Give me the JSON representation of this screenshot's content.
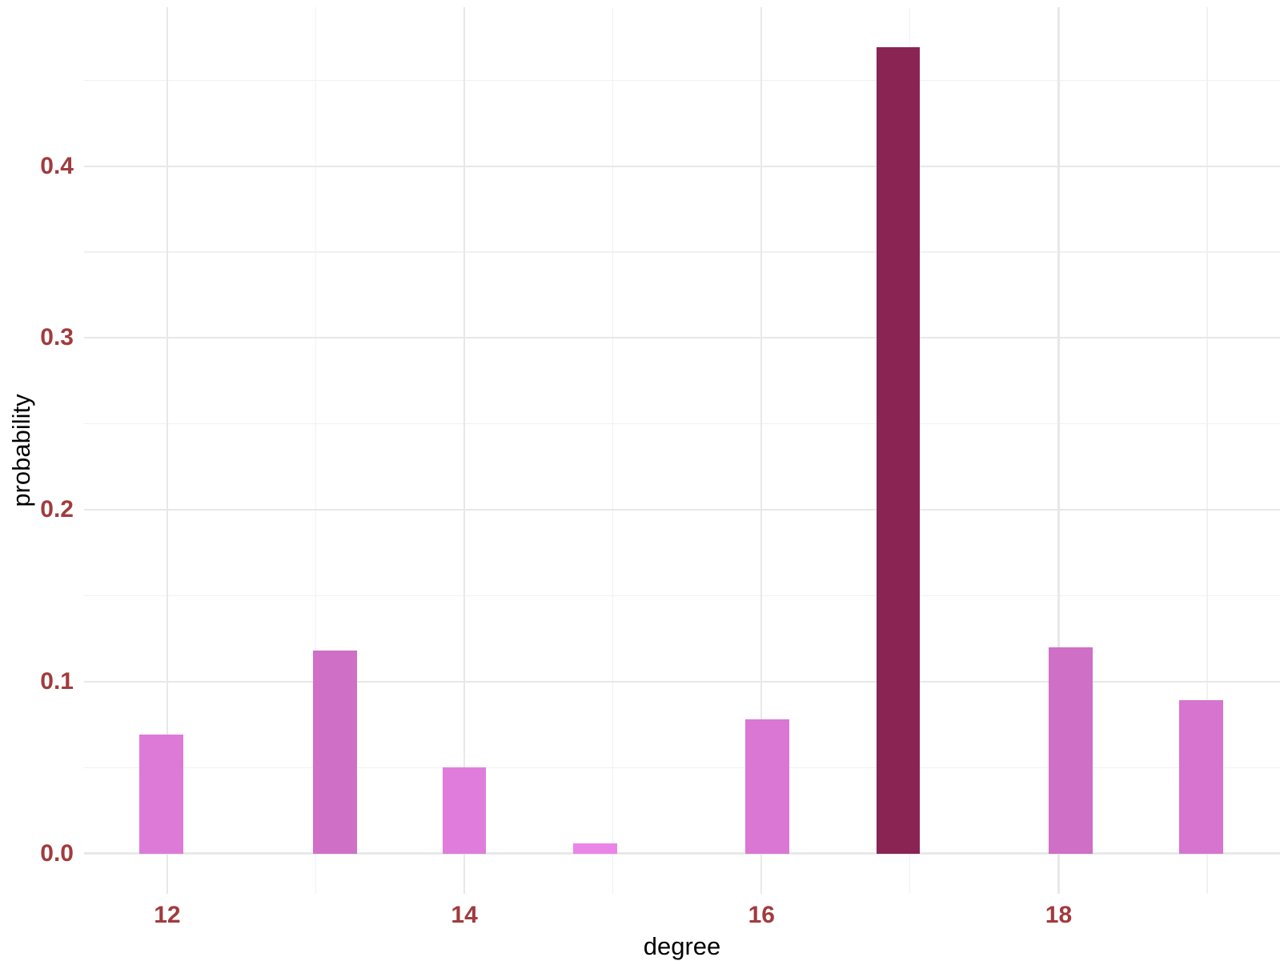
{
  "chart_data": {
    "type": "bar",
    "title": "",
    "xlabel": "degree",
    "ylabel": "probability",
    "x": [
      11.96,
      13.13,
      14.0,
      14.88,
      16.04,
      16.92,
      18.08,
      18.96
    ],
    "values": [
      0.069,
      0.118,
      0.05,
      0.006,
      0.078,
      0.469,
      0.12,
      0.089
    ],
    "bar_colors": [
      "#DD7AD8",
      "#D06FC6",
      "#E07CDC",
      "#EA85E8",
      "#DA76D4",
      "#8A2453",
      "#CF6FC5",
      "#D774CF"
    ],
    "bar_width_units": 0.295,
    "xlim": [
      11.44,
      19.49
    ],
    "ylim": [
      -0.0235,
      0.4925
    ],
    "x_major_ticks": [
      12,
      14,
      16,
      18
    ],
    "x_tick_labels": [
      "12",
      "14",
      "16",
      "18"
    ],
    "x_minor_ticks": [
      13,
      15,
      17,
      19
    ],
    "y_major_ticks": [
      0.0,
      0.1,
      0.2,
      0.3,
      0.4
    ],
    "y_tick_labels": [
      "0.0",
      "0.1",
      "0.2",
      "0.3",
      "0.4"
    ],
    "y_minor_ticks": [
      0.05,
      0.15,
      0.25,
      0.35,
      0.45
    ],
    "grid": true,
    "legend_position": "none"
  },
  "style": {
    "background_color": "#FFFFFF",
    "tick_label_color": "#A13B3D",
    "axis_title_color": "#000000",
    "grid_major_color": "#E8E8E8",
    "grid_minor_color": "#F1F1F1",
    "grid_major_width": 2.2,
    "grid_minor_width": 1.2
  }
}
